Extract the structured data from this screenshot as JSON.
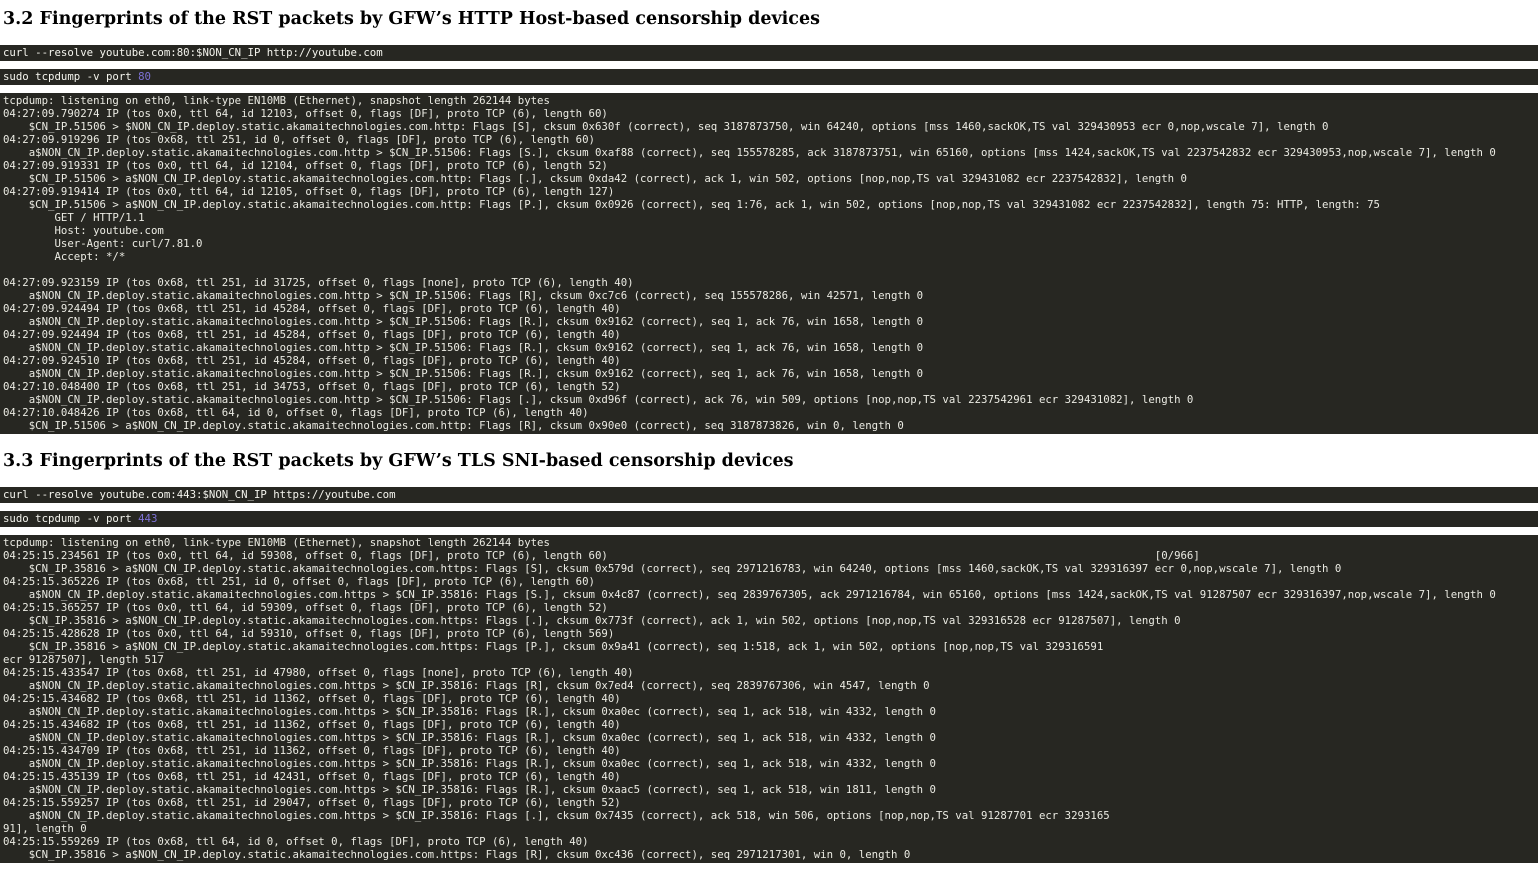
{
  "colors": {
    "page_bg": "#ffffff",
    "heading_text": "#000000",
    "terminal_bg": "#272722",
    "command_text": "#f5f5ee",
    "output_text": "#ebebe3",
    "port_highlight": "#7e72d6"
  },
  "sections": [
    {
      "heading": "3.2 Fingerprints of the RST packets by GFW’s HTTP Host-based censorship devices",
      "curl_command": "curl --resolve youtube.com:80:$NON_CN_IP http://youtube.com",
      "tcpdump_prefix": "sudo tcpdump -v port ",
      "tcpdump_port": "80",
      "output_lines": [
        "tcpdump: listening on eth0, link-type EN10MB (Ethernet), snapshot length 262144 bytes",
        "04:27:09.790274 IP (tos 0x0, ttl 64, id 12103, offset 0, flags [DF], proto TCP (6), length 60)",
        "    $CN_IP.51506 > $NON_CN_IP.deploy.static.akamaitechnologies.com.http: Flags [S], cksum 0x630f (correct), seq 3187873750, win 64240, options [mss 1460,sackOK,TS val 329430953 ecr 0,nop,wscale 7], length 0",
        "04:27:09.919296 IP (tos 0x68, ttl 251, id 0, offset 0, flags [DF], proto TCP (6), length 60)",
        "    a$NON_CN_IP.deploy.static.akamaitechnologies.com.http > $CN_IP.51506: Flags [S.], cksum 0xaf88 (correct), seq 155578285, ack 3187873751, win 65160, options [mss 1424,sackOK,TS val 2237542832 ecr 329430953,nop,wscale 7], length 0",
        "04:27:09.919331 IP (tos 0x0, ttl 64, id 12104, offset 0, flags [DF], proto TCP (6), length 52)",
        "    $CN_IP.51506 > a$NON_CN_IP.deploy.static.akamaitechnologies.com.http: Flags [.], cksum 0xda42 (correct), ack 1, win 502, options [nop,nop,TS val 329431082 ecr 2237542832], length 0",
        "04:27:09.919414 IP (tos 0x0, ttl 64, id 12105, offset 0, flags [DF], proto TCP (6), length 127)",
        "    $CN_IP.51506 > a$NON_CN_IP.deploy.static.akamaitechnologies.com.http: Flags [P.], cksum 0x0926 (correct), seq 1:76, ack 1, win 502, options [nop,nop,TS val 329431082 ecr 2237542832], length 75: HTTP, length: 75",
        "        GET / HTTP/1.1",
        "        Host: youtube.com",
        "        User-Agent: curl/7.81.0",
        "        Accept: */*",
        "",
        "04:27:09.923159 IP (tos 0x68, ttl 251, id 31725, offset 0, flags [none], proto TCP (6), length 40)",
        "    a$NON_CN_IP.deploy.static.akamaitechnologies.com.http > $CN_IP.51506: Flags [R], cksum 0xc7c6 (correct), seq 155578286, win 42571, length 0",
        "04:27:09.924494 IP (tos 0x68, ttl 251, id 45284, offset 0, flags [DF], proto TCP (6), length 40)",
        "    a$NON_CN_IP.deploy.static.akamaitechnologies.com.http > $CN_IP.51506: Flags [R.], cksum 0x9162 (correct), seq 1, ack 76, win 1658, length 0",
        "04:27:09.924494 IP (tos 0x68, ttl 251, id 45284, offset 0, flags [DF], proto TCP (6), length 40)",
        "    a$NON_CN_IP.deploy.static.akamaitechnologies.com.http > $CN_IP.51506: Flags [R.], cksum 0x9162 (correct), seq 1, ack 76, win 1658, length 0",
        "04:27:09.924510 IP (tos 0x68, ttl 251, id 45284, offset 0, flags [DF], proto TCP (6), length 40)",
        "    a$NON_CN_IP.deploy.static.akamaitechnologies.com.http > $CN_IP.51506: Flags [R.], cksum 0x9162 (correct), seq 1, ack 76, win 1658, length 0",
        "04:27:10.048400 IP (tos 0x68, ttl 251, id 34753, offset 0, flags [DF], proto TCP (6), length 52)",
        "    a$NON_CN_IP.deploy.static.akamaitechnologies.com.http > $CN_IP.51506: Flags [.], cksum 0xd96f (correct), ack 76, win 509, options [nop,nop,TS val 2237542961 ecr 329431082], length 0",
        "04:27:10.048426 IP (tos 0x68, ttl 64, id 0, offset 0, flags [DF], proto TCP (6), length 40)",
        "    $CN_IP.51506 > a$NON_CN_IP.deploy.static.akamaitechnologies.com.http: Flags [R], cksum 0x90e0 (correct), seq 3187873826, win 0, length 0"
      ]
    },
    {
      "heading": "3.3 Fingerprints of the RST packets by GFW’s TLS SNI-based censorship devices",
      "curl_command": "curl --resolve youtube.com:443:$NON_CN_IP https://youtube.com",
      "tcpdump_prefix": "sudo tcpdump -v port ",
      "tcpdump_port": "443",
      "output_lines": [
        "tcpdump: listening on eth0, link-type EN10MB (Ethernet), snapshot length 262144 bytes",
        "04:25:15.234561 IP (tos 0x0, ttl 64, id 59308, offset 0, flags [DF], proto TCP (6), length 60)                                                                                     [0/966]",
        "    $CN_IP.35816 > a$NON_CN_IP.deploy.static.akamaitechnologies.com.https: Flags [S], cksum 0x579d (correct), seq 2971216783, win 64240, options [mss 1460,sackOK,TS val 329316397 ecr 0,nop,wscale 7], length 0",
        "04:25:15.365226 IP (tos 0x68, ttl 251, id 0, offset 0, flags [DF], proto TCP (6), length 60)",
        "    a$NON_CN_IP.deploy.static.akamaitechnologies.com.https > $CN_IP.35816: Flags [S.], cksum 0x4c87 (correct), seq 2839767305, ack 2971216784, win 65160, options [mss 1424,sackOK,TS val 91287507 ecr 329316397,nop,wscale 7], length 0",
        "04:25:15.365257 IP (tos 0x0, ttl 64, id 59309, offset 0, flags [DF], proto TCP (6), length 52)",
        "    $CN_IP.35816 > a$NON_CN_IP.deploy.static.akamaitechnologies.com.https: Flags [.], cksum 0x773f (correct), ack 1, win 502, options [nop,nop,TS val 329316528 ecr 91287507], length 0",
        "04:25:15.428628 IP (tos 0x0, ttl 64, id 59310, offset 0, flags [DF], proto TCP (6), length 569)",
        "    $CN_IP.35816 > a$NON_CN_IP.deploy.static.akamaitechnologies.com.https: Flags [P.], cksum 0x9a41 (correct), seq 1:518, ack 1, win 502, options [nop,nop,TS val 329316591",
        "ecr 91287507], length 517",
        "04:25:15.433547 IP (tos 0x68, ttl 251, id 47980, offset 0, flags [none], proto TCP (6), length 40)",
        "    a$NON_CN_IP.deploy.static.akamaitechnologies.com.https > $CN_IP.35816: Flags [R], cksum 0x7ed4 (correct), seq 2839767306, win 4547, length 0",
        "04:25:15.434682 IP (tos 0x68, ttl 251, id 11362, offset 0, flags [DF], proto TCP (6), length 40)",
        "    a$NON_CN_IP.deploy.static.akamaitechnologies.com.https > $CN_IP.35816: Flags [R.], cksum 0xa0ec (correct), seq 1, ack 518, win 4332, length 0",
        "04:25:15.434682 IP (tos 0x68, ttl 251, id 11362, offset 0, flags [DF], proto TCP (6), length 40)",
        "    a$NON_CN_IP.deploy.static.akamaitechnologies.com.https > $CN_IP.35816: Flags [R.], cksum 0xa0ec (correct), seq 1, ack 518, win 4332, length 0",
        "04:25:15.434709 IP (tos 0x68, ttl 251, id 11362, offset 0, flags [DF], proto TCP (6), length 40)",
        "    a$NON_CN_IP.deploy.static.akamaitechnologies.com.https > $CN_IP.35816: Flags [R.], cksum 0xa0ec (correct), seq 1, ack 518, win 4332, length 0",
        "04:25:15.435139 IP (tos 0x68, ttl 251, id 42431, offset 0, flags [DF], proto TCP (6), length 40)",
        "    a$NON_CN_IP.deploy.static.akamaitechnologies.com.https > $CN_IP.35816: Flags [R.], cksum 0xaac5 (correct), seq 1, ack 518, win 1811, length 0",
        "04:25:15.559257 IP (tos 0x68, ttl 251, id 29047, offset 0, flags [DF], proto TCP (6), length 52)",
        "    a$NON_CN_IP.deploy.static.akamaitechnologies.com.https > $CN_IP.35816: Flags [.], cksum 0x7435 (correct), ack 518, win 506, options [nop,nop,TS val 91287701 ecr 3293165",
        "91], length 0",
        "04:25:15.559269 IP (tos 0x68, ttl 64, id 0, offset 0, flags [DF], proto TCP (6), length 40)",
        "    $CN_IP.35816 > a$NON_CN_IP.deploy.static.akamaitechnologies.com.https: Flags [R], cksum 0xc436 (correct), seq 2971217301, win 0, length 0"
      ]
    }
  ]
}
